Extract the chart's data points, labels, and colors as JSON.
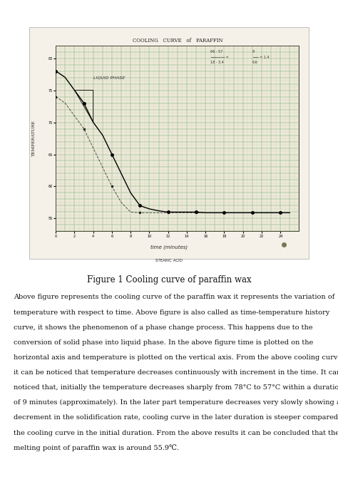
{
  "photo_bg_color": "#c8b89a",
  "paper_color": "#f5f0e8",
  "graph_title": "COOLING   CURVE   of   PARAFFIN",
  "ylabel_text": "TEMPERATURE",
  "xlabel_text": "time (minutes)",
  "legend_text": "STEARIC ACID",
  "liquid_label": "LIQUID PHASE",
  "figure_caption": "Figure 1 Cooling curve of paraffin wax",
  "body_lines": [
    "Above figure represents the cooling curve of the paraffin wax it represents the variation of",
    "temperature with respect to time. Above figure is also called as time-temperature history",
    "curve, it shows the phenomenon of a phase change process. This happens due to the",
    "conversion of solid phase into liquid phase. In the above figure time is plotted on the",
    "horizontal axis and temperature is plotted on the vertical axis. From the above cooling curve",
    "it can be noticed that temperature decreases continuously with increment in the time. It can be",
    "noticed that, initially the temperature decreases sharply from 78°C to 57°C within a duration",
    "of 9 minutes (approximately). In the later part temperature decreases very slowly showing a",
    "decrement in the solidification rate, cooling curve in the later duration is steeper compared to",
    "the cooling curve in the initial duration. From the above results it can be concluded that the",
    "melting point of paraffin wax is around 55.9℃."
  ],
  "curve1_x": [
    0,
    1,
    2,
    3,
    4,
    5,
    6,
    7,
    8,
    9,
    10,
    11,
    12,
    13,
    14,
    15,
    16,
    17,
    18,
    19,
    20,
    21,
    22,
    23,
    24,
    25
  ],
  "curve1_y": [
    78,
    77,
    75,
    73,
    70,
    68,
    65,
    62,
    59,
    57,
    56.5,
    56.2,
    56,
    56,
    56,
    56,
    55.9,
    55.9,
    55.9,
    55.9,
    55.9,
    55.9,
    55.9,
    55.9,
    55.9,
    55.9
  ],
  "curve2_x": [
    0,
    1,
    2,
    3,
    4,
    5,
    6,
    7,
    8,
    9,
    10,
    11,
    12,
    13,
    14,
    15,
    16,
    17,
    18,
    19,
    20,
    21,
    22,
    23,
    24,
    25
  ],
  "curve2_y": [
    74,
    73,
    71,
    69,
    66,
    63,
    60,
    57.5,
    56,
    55.9,
    55.9,
    55.9,
    55.9,
    55.9,
    55.9,
    55.9,
    55.9,
    55.9,
    55.9,
    55.9,
    55.9,
    55.9,
    55.9,
    55.9,
    55.9,
    55.9
  ],
  "yticks": [
    55,
    60,
    65,
    70,
    75,
    80
  ],
  "xticks": [
    0,
    2,
    4,
    6,
    8,
    10,
    12,
    14,
    16,
    18,
    20,
    22,
    24
  ],
  "ylim": [
    53,
    82
  ],
  "xlim": [
    0,
    26
  ]
}
